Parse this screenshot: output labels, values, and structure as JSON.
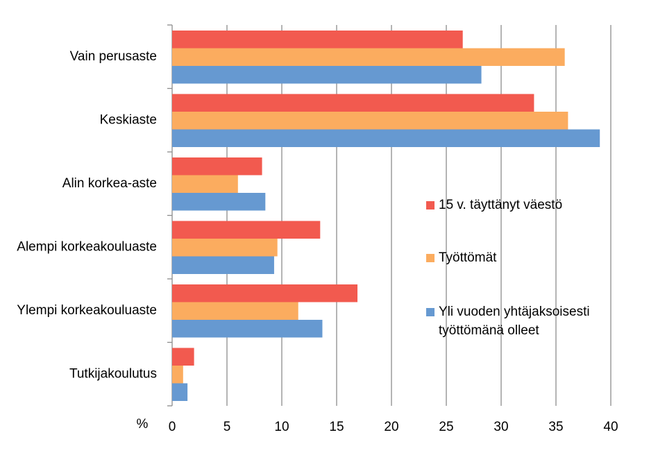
{
  "chart_data": {
    "type": "bar",
    "orientation": "horizontal",
    "categories": [
      "Vain perusaste",
      "Keskiaste",
      "Alin korkea-aste",
      "Alempi korkeakouluaste",
      "Ylempi korkeakouluaste",
      "Tutkijakoulutus"
    ],
    "series": [
      {
        "name": "15 v. täyttänyt väestö",
        "color": "#f25a4f",
        "values": [
          26.5,
          33.0,
          8.2,
          13.5,
          16.9,
          2.0
        ]
      },
      {
        "name": "Työttömät",
        "color": "#fbac5f",
        "values": [
          35.8,
          36.1,
          6.0,
          9.6,
          11.5,
          1.0
        ]
      },
      {
        "name": "Yli vuoden yhtäjaksoisesti työttömänä olleet",
        "color": "#6699d1",
        "values": [
          28.2,
          39.0,
          8.5,
          9.3,
          13.7,
          1.4
        ]
      }
    ],
    "xlabel": "%",
    "xlim": [
      0,
      40
    ],
    "xticks": [
      0,
      5,
      10,
      15,
      20,
      25,
      30,
      35,
      40
    ],
    "grid": true
  }
}
